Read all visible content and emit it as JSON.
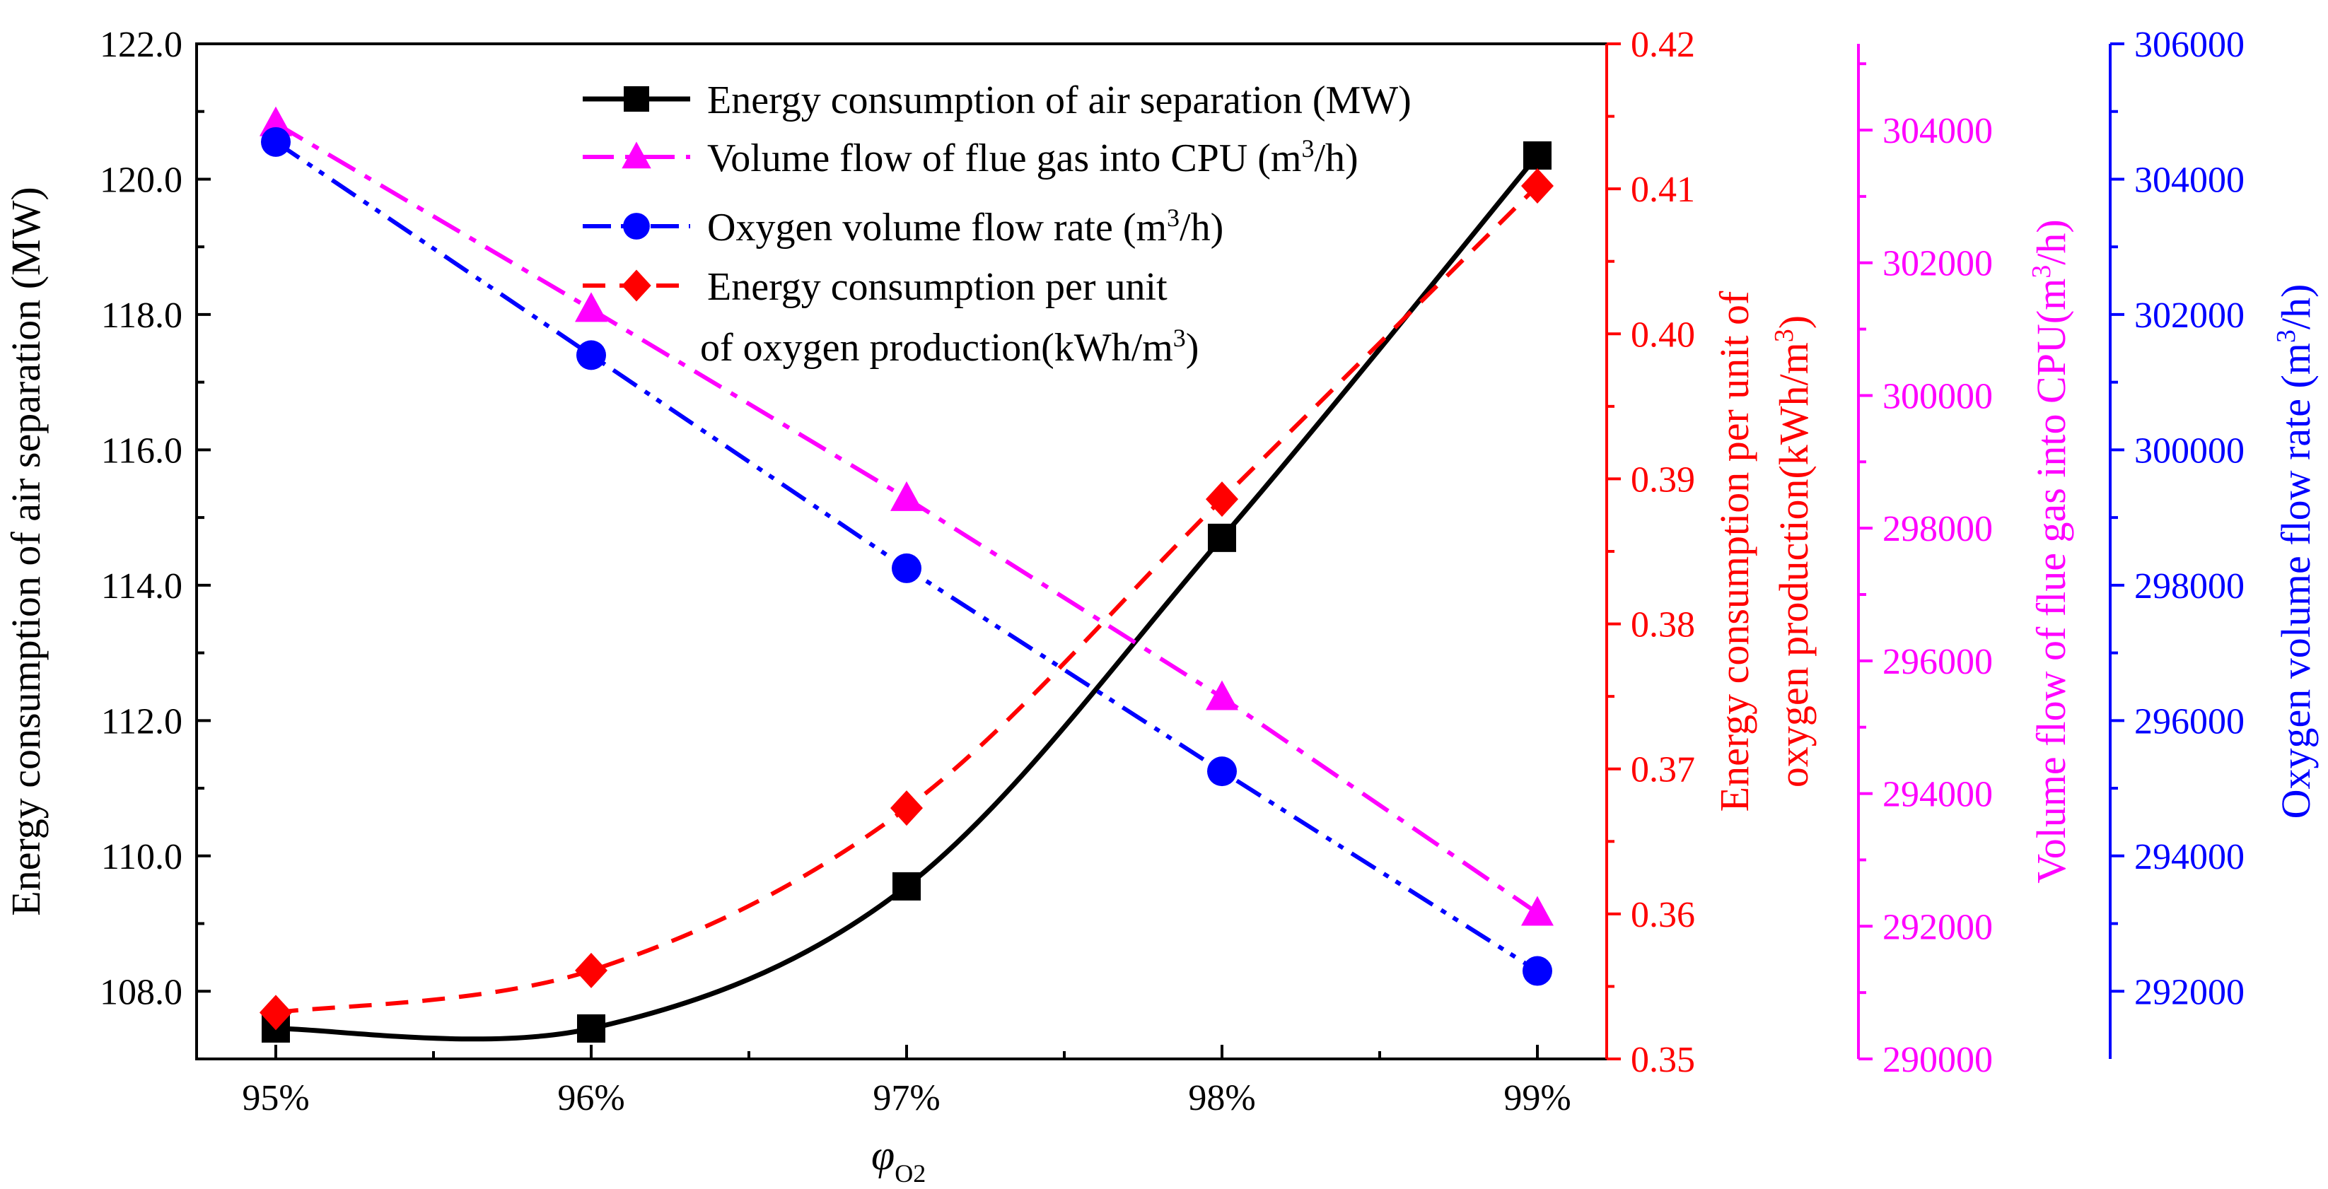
{
  "chart_data": {
    "type": "line",
    "xlabel": "φO2",
    "xlabel_symbol": "φ",
    "xlabel_sub": "O2",
    "categories": [
      "95%",
      "96%",
      "97%",
      "98%",
      "99%"
    ],
    "colors": {
      "left": "#000000",
      "red": "#ff0000",
      "magenta": "#ff00ff",
      "blue": "#0000ff"
    },
    "axes": {
      "left": {
        "title": "Energy consumption of air separation (MW)",
        "range": [
          107.0,
          122.0
        ],
        "ticks": [
          "108.0",
          "110.0",
          "112.0",
          "114.0",
          "116.0",
          "118.0",
          "120.0",
          "122.0"
        ],
        "color": "#000000"
      },
      "red": {
        "title_line1": "Energy consumption per unit of",
        "title_line2": "oxygen production(kWh/m",
        "title_line2_sup": "3",
        "title_line2_end": ")",
        "range": [
          0.35,
          0.42
        ],
        "ticks": [
          "0.35",
          "0.36",
          "0.37",
          "0.38",
          "0.39",
          "0.40",
          "0.41",
          "0.42"
        ],
        "color": "#ff0000"
      },
      "magenta": {
        "title": "Volume flow of flue gas into CPU(m",
        "title_sup": "3",
        "title_end": "/h)",
        "range": [
          290000,
          305300
        ],
        "ticks": [
          "290000",
          "292000",
          "294000",
          "296000",
          "298000",
          "300000",
          "302000",
          "304000"
        ],
        "color": "#ff00ff"
      },
      "blue": {
        "title": "Oxygen volume flow rate (m",
        "title_sup": "3",
        "title_end": "/h)",
        "range": [
          291000,
          306000
        ],
        "ticks": [
          "292000",
          "294000",
          "296000",
          "298000",
          "300000",
          "302000",
          "304000",
          "306000"
        ],
        "color": "#0000ff"
      }
    },
    "series": [
      {
        "name": "Energy consumption of air separation (MW)",
        "axis": "left",
        "marker": "square",
        "dash": "solid",
        "values": [
          107.45,
          107.45,
          109.55,
          114.7,
          120.35
        ]
      },
      {
        "name": "Volume flow of flue gas into CPU (m3/h)",
        "axis": "magenta",
        "marker": "triangle",
        "dash": "dashdot",
        "values": [
          304100,
          301300,
          298450,
          295450,
          292200
        ]
      },
      {
        "name": "Oxygen volume flow rate (m3/h)",
        "axis": "blue",
        "marker": "circle",
        "dash": "dashdotdot",
        "values": [
          304550,
          301400,
          298250,
          295250,
          292300
        ]
      },
      {
        "name": "Energy consumption per unit of oxygen production(kWh/m3)",
        "axis": "red",
        "marker": "diamond",
        "dash": "dashed",
        "values": [
          0.3532,
          0.3561,
          0.3673,
          0.3886,
          0.4102
        ]
      }
    ],
    "legend": {
      "position": "top-center",
      "entries": [
        {
          "pre": "Energy consumption of air separation (MW)",
          "sup": "",
          "post": ""
        },
        {
          "pre": "Volume flow of flue gas into CPU (m",
          "sup": "3",
          "post": "/h)"
        },
        {
          "pre": "Oxygen volume flow rate (m",
          "sup": "3",
          "post": "/h)"
        },
        {
          "pre": "Energy consumption per unit",
          "sup": "",
          "post": ""
        },
        {
          "pre": "of oxygen production(kWh/m",
          "sup": "3",
          "post": ")"
        }
      ]
    }
  }
}
